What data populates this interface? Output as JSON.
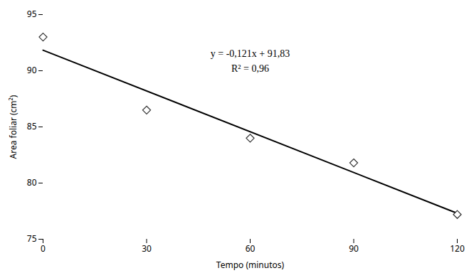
{
  "chart_data": {
    "type": "scatter",
    "xlabel": "Tempo (minutos)",
    "ylabel": "Area foliar (cm²)",
    "series": [
      {
        "type": "line",
        "color": "#000000",
        "x": [
          0,
          120
        ],
        "values": [
          91.83,
          77.31
        ]
      },
      {
        "type": "scatter",
        "marker": "diamond",
        "color": "#333333",
        "x": [
          0,
          30,
          60,
          90,
          120
        ],
        "values": [
          93.0,
          86.5,
          84.0,
          81.8,
          77.2
        ]
      }
    ],
    "annotations": [
      "y = -0,121x + 91,83",
      "R² = 0,96"
    ],
    "xlim": [
      0,
      120
    ],
    "xticks": [
      0,
      30,
      60,
      90,
      120
    ],
    "ylim": [
      75,
      95
    ],
    "yticks": [
      75,
      80,
      85,
      90,
      95
    ],
    "grid": false
  }
}
